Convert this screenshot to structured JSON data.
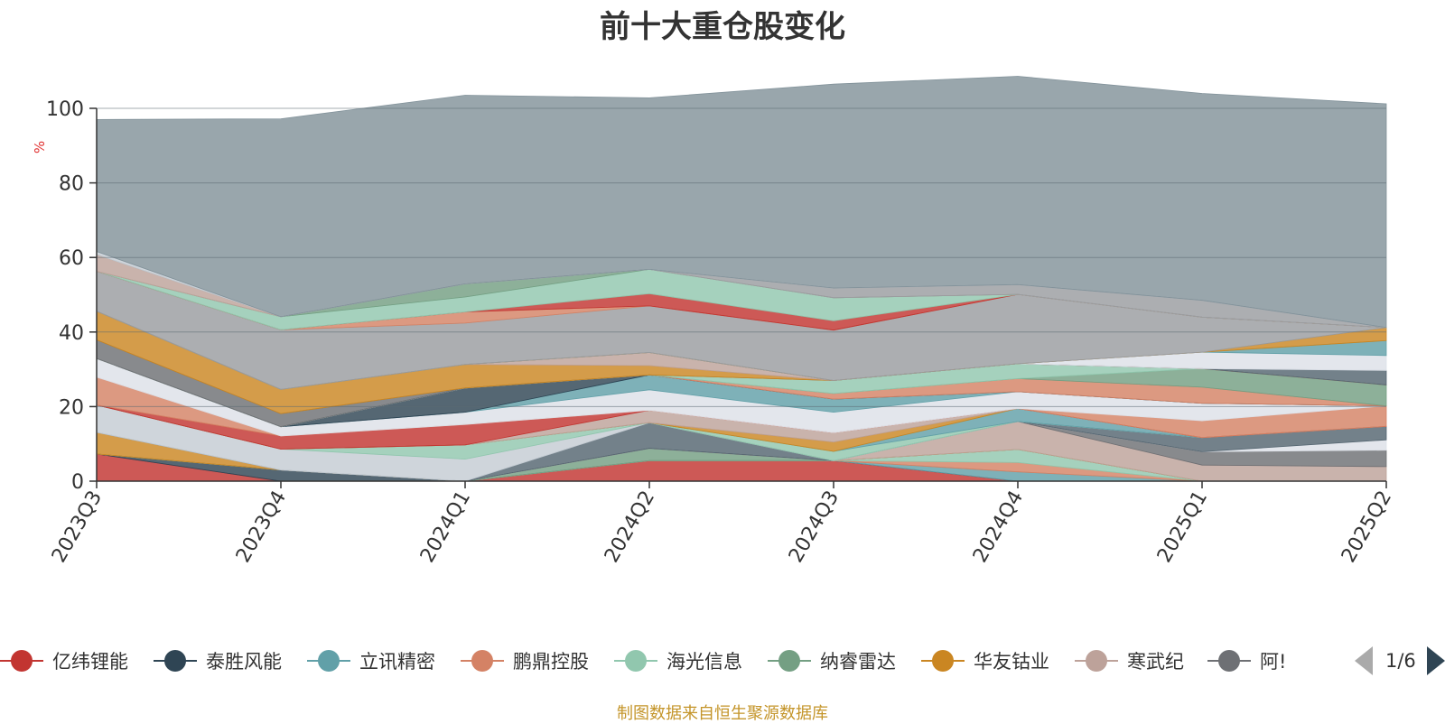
{
  "page": {
    "title": "前十大重仓股变化",
    "source_note": "制图数据来自恒生聚源数据库"
  },
  "legend": {
    "items": [
      {
        "label": "亿纬锂能",
        "color": "#c23531"
      },
      {
        "label": "泰胜风能",
        "color": "#2f4554"
      },
      {
        "label": "立讯精密",
        "color": "#61a0a8"
      },
      {
        "label": "鹏鼎控股",
        "color": "#d48265"
      },
      {
        "label": "海光信息",
        "color": "#91c7ae"
      },
      {
        "label": "纳睿雷达",
        "color": "#749f83"
      },
      {
        "label": "华友钴业",
        "color": "#ca8622"
      },
      {
        "label": "寒武纪",
        "color": "#bda29a"
      },
      {
        "label": "阿!",
        "color": "#6e7074"
      }
    ],
    "page_indicator": "1/6"
  },
  "chart_data": {
    "type": "area",
    "stacked": true,
    "title": "前十大重仓股变化",
    "ylabel": "%",
    "ylim": [
      0,
      100
    ],
    "yticks": [
      0,
      20,
      40,
      60,
      80,
      100
    ],
    "categories": [
      "2023Q3",
      "2023Q4",
      "2024Q1",
      "2024Q2",
      "2024Q3",
      "2024Q4",
      "2025Q1",
      "2025Q2"
    ],
    "grid": true,
    "series": [
      {
        "name": "亿纬锂能",
        "color": "#c23531",
        "values": [
          7.3,
          0,
          0,
          5.5,
          5.5,
          0,
          0,
          0
        ]
      },
      {
        "name": "泰胜风能",
        "color": "#2f4554",
        "values": [
          0,
          3,
          0,
          0,
          0,
          0,
          0,
          0
        ]
      },
      {
        "name": "立讯精密",
        "color": "#61a0a8",
        "values": [
          0,
          0,
          0,
          0,
          0,
          2.5,
          0,
          0
        ]
      },
      {
        "name": "鹏鼎控股",
        "color": "#d48265",
        "values": [
          0,
          0,
          0,
          0,
          0,
          2.5,
          0,
          0
        ]
      },
      {
        "name": "海光信息",
        "color": "#91c7ae",
        "values": [
          0,
          0,
          0,
          0,
          0,
          3.5,
          0,
          0
        ]
      },
      {
        "name": "纳睿雷达",
        "color": "#749f83",
        "values": [
          0,
          0,
          0,
          3.3,
          0,
          0,
          0,
          0
        ]
      },
      {
        "name": "华友钴业",
        "color": "#ca8622",
        "values": [
          5.8,
          0,
          0,
          0,
          0,
          0,
          0,
          0
        ]
      },
      {
        "name": "寒武纪",
        "color": "#bda29a",
        "values": [
          0,
          0,
          0,
          0,
          0,
          7.5,
          4.3,
          3.9
        ]
      },
      {
        "name": "阿!",
        "color": "#6e7074",
        "values": [
          0,
          0,
          0,
          0,
          0,
          0,
          3.6,
          4.4
        ]
      },
      {
        "name": "",
        "color": "#dde1e8",
        "values": [
          0,
          0,
          0,
          0,
          0,
          0,
          0,
          2.8
        ]
      },
      {
        "name": "",
        "color": "#546570",
        "values": [
          0,
          0,
          0,
          6.9,
          0,
          0,
          3.8,
          3.6
        ]
      },
      {
        "name": "",
        "color": "#c4ccd3",
        "values": [
          7.3,
          5.6,
          5.9,
          0,
          0,
          0,
          0,
          0
        ]
      },
      {
        "name": "",
        "color": "#91c7ae",
        "values": [
          0,
          0,
          3.8,
          0,
          2.5,
          0,
          0,
          0
        ]
      },
      {
        "name": "",
        "color": "#61a0a8",
        "values": [
          0,
          0,
          0,
          0,
          0,
          3.5,
          0,
          0
        ]
      },
      {
        "name": "",
        "color": "#ca8622",
        "values": [
          0,
          0,
          0,
          0,
          2.5,
          0,
          0,
          0
        ]
      },
      {
        "name": "",
        "color": "#bda29a",
        "values": [
          0,
          0,
          0,
          3.3,
          2.5,
          0,
          0,
          0
        ]
      },
      {
        "name": "",
        "color": "#c23531",
        "values": [
          0,
          3.5,
          5.5,
          0,
          0,
          0,
          0,
          0
        ]
      },
      {
        "name": "",
        "color": "#d48265",
        "values": [
          7.5,
          0,
          0,
          0,
          0,
          0,
          4.5,
          5.5
        ]
      },
      {
        "name": "",
        "color": "#dde1e8",
        "values": [
          5,
          2.5,
          3.3,
          5.5,
          5.5,
          4.5,
          4.7,
          0
        ]
      },
      {
        "name": "",
        "color": "#61a0a8",
        "values": [
          0,
          0,
          0,
          4,
          3.5,
          0,
          0,
          0
        ]
      },
      {
        "name": "",
        "color": "#2f4554",
        "values": [
          0,
          0,
          6.5,
          0,
          0,
          0,
          0,
          0
        ]
      },
      {
        "name": "",
        "color": "#d48265",
        "values": [
          0,
          0,
          0,
          0,
          1.5,
          3.5,
          4.3,
          0
        ]
      },
      {
        "name": "",
        "color": "#749f83",
        "values": [
          0,
          0,
          0,
          0,
          0,
          0,
          5,
          5.6
        ]
      },
      {
        "name": "",
        "color": "#91c7ae",
        "values": [
          0,
          0,
          0,
          0,
          3.5,
          4,
          0,
          0
        ]
      },
      {
        "name": "",
        "color": "#c4ccd3",
        "values": [
          0,
          0,
          0,
          0,
          0,
          0,
          0,
          0
        ]
      },
      {
        "name": "",
        "color": "#6e7074",
        "values": [
          5,
          3.5,
          0,
          0,
          0,
          0,
          0,
          0
        ]
      },
      {
        "name": "",
        "color": "#ca8622",
        "values": [
          7.7,
          6.5,
          6.3,
          2.5,
          0,
          0,
          0,
          0
        ]
      },
      {
        "name": "",
        "color": "#bda29a",
        "values": [
          0,
          0,
          0,
          3.5,
          0,
          0,
          0,
          0
        ]
      },
      {
        "name": "",
        "color": "#546570",
        "values": [
          0,
          0,
          0,
          0,
          0,
          0,
          0,
          3.9
        ]
      },
      {
        "name": "",
        "color": "#dde1e8",
        "values": [
          0,
          0,
          0,
          0,
          0,
          0,
          4.4,
          4
        ]
      },
      {
        "name": "",
        "color": "#61a0a8",
        "values": [
          0,
          0,
          0,
          0,
          0,
          0,
          0,
          4
        ]
      },
      {
        "name": "",
        "color": "#ca8622",
        "values": [
          0,
          0,
          0,
          0,
          0,
          0,
          0,
          3.5
        ]
      },
      {
        "name": "",
        "color": "#9a9ca0",
        "values": [
          10.7,
          16,
          11.1,
          12.5,
          13.5,
          18.6,
          9.4,
          0
        ]
      },
      {
        "name": "",
        "color": "#d48265",
        "values": [
          0,
          0,
          3,
          0,
          0,
          0,
          0,
          0
        ]
      },
      {
        "name": "",
        "color": "#c23531",
        "values": [
          0,
          0,
          0,
          3.3,
          2.5,
          0,
          0,
          0
        ]
      },
      {
        "name": "",
        "color": "#91c7ae",
        "values": [
          0,
          3.5,
          4,
          6.5,
          6.2,
          0,
          0,
          0
        ]
      },
      {
        "name": "",
        "color": "#749f83",
        "values": [
          0,
          0,
          3.5,
          0,
          0,
          0,
          0,
          0
        ]
      },
      {
        "name": "",
        "color": "#bda29a",
        "values": [
          4.5,
          0,
          0,
          0,
          0,
          0,
          0,
          0
        ]
      },
      {
        "name": "",
        "color": "#9a9ca0",
        "values": [
          0,
          0,
          0,
          0,
          2.6,
          2.6,
          4.5,
          0
        ]
      },
      {
        "name": "",
        "color": "#c4ccd3",
        "values": [
          0.8,
          0,
          0,
          0,
          0,
          0,
          0,
          0
        ]
      },
      {
        "name": "",
        "color": "#82929a",
        "values": [
          35.4,
          53.1,
          50.6,
          46,
          54.7,
          55.9,
          55.5,
          60
        ]
      }
    ]
  }
}
